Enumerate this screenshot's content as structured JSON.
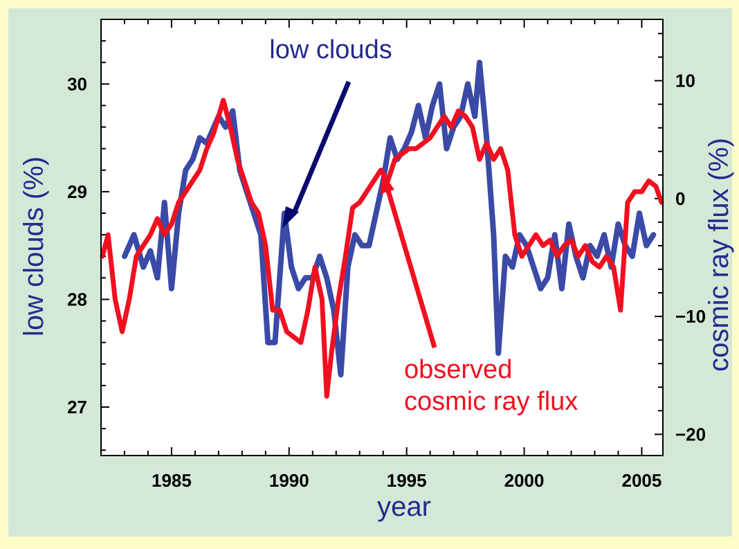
{
  "colors": {
    "panel_bg": "#d4e8d7",
    "outer_bg": "#fdfdc8",
    "clouds": "#3a4aa6",
    "cosmic": "#f01020",
    "label_blue": "#242a8c",
    "arrow_blue": "#0a0a6e",
    "arrow_red": "#f01020"
  },
  "chart_data": {
    "type": "line",
    "xlabel": "year",
    "ylabel_left": "low clouds (%)",
    "ylabel_right": "cosmic ray flux (%)",
    "xlim": [
      1982.0,
      2005.9
    ],
    "ylim_left": [
      26.55,
      30.6
    ],
    "ylim_right": [
      -21.8,
      15.2
    ],
    "x_ticks": [
      "1985",
      "1990",
      "1995",
      "2000",
      "2005"
    ],
    "y_ticks_left": [
      "27",
      "28",
      "29",
      "30"
    ],
    "y_ticks_right": [
      "−20",
      "−10",
      "0",
      "10"
    ],
    "annotations": {
      "clouds_label": "low clouds",
      "cosmic_label_line1": "observed",
      "cosmic_label_line2": "cosmic ray flux"
    },
    "series": [
      {
        "name": "low clouds",
        "axis": "left",
        "x": [
          1983.0,
          1983.4,
          1983.8,
          1984.1,
          1984.4,
          1984.7,
          1985.0,
          1985.3,
          1985.6,
          1985.9,
          1986.2,
          1986.5,
          1986.8,
          1987.0,
          1987.3,
          1987.6,
          1987.9,
          1988.2,
          1988.5,
          1988.8,
          1989.1,
          1989.4,
          1989.8,
          1990.1,
          1990.4,
          1990.7,
          1991.0,
          1991.3,
          1991.6,
          1991.9,
          1992.2,
          1992.5,
          1992.8,
          1993.1,
          1993.4,
          1993.7,
          1994.0,
          1994.3,
          1994.6,
          1994.9,
          1995.2,
          1995.5,
          1995.8,
          1996.1,
          1996.4,
          1996.7,
          1997.0,
          1997.3,
          1997.6,
          1997.9,
          1998.1,
          1998.4,
          1998.7,
          1998.9,
          1999.2,
          1999.5,
          1999.8,
          2000.1,
          2000.4,
          2000.7,
          2001.0,
          2001.3,
          2001.6,
          2001.9,
          2002.2,
          2002.5,
          2002.8,
          2003.1,
          2003.4,
          2003.7,
          2004.0,
          2004.3,
          2004.6,
          2004.9,
          2005.2,
          2005.5
        ],
        "values": [
          28.4,
          28.6,
          28.3,
          28.45,
          28.2,
          28.9,
          28.1,
          28.8,
          29.2,
          29.3,
          29.5,
          29.45,
          29.6,
          29.7,
          29.6,
          29.75,
          29.2,
          29.0,
          28.8,
          28.6,
          27.6,
          27.6,
          28.8,
          28.3,
          28.1,
          28.2,
          28.2,
          28.4,
          28.2,
          27.9,
          27.3,
          28.3,
          28.6,
          28.5,
          28.5,
          28.8,
          29.1,
          29.5,
          29.3,
          29.4,
          29.55,
          29.8,
          29.5,
          29.8,
          30.0,
          29.4,
          29.6,
          29.7,
          30.0,
          29.7,
          30.2,
          29.5,
          28.6,
          27.5,
          28.4,
          28.3,
          28.6,
          28.5,
          28.3,
          28.1,
          28.2,
          28.6,
          28.1,
          28.7,
          28.4,
          28.2,
          28.5,
          28.4,
          28.6,
          28.3,
          28.7,
          28.5,
          28.4,
          28.8,
          28.5,
          28.6
        ]
      },
      {
        "name": "observed cosmic ray flux",
        "axis": "left",
        "x": [
          1982.0,
          1982.3,
          1982.6,
          1982.9,
          1983.2,
          1983.5,
          1983.8,
          1984.1,
          1984.4,
          1984.7,
          1985.0,
          1985.3,
          1985.6,
          1985.9,
          1986.2,
          1986.5,
          1986.8,
          1987.0,
          1987.2,
          1987.5,
          1987.8,
          1988.1,
          1988.4,
          1988.7,
          1989.0,
          1989.3,
          1989.6,
          1989.9,
          1990.2,
          1990.5,
          1990.8,
          1991.1,
          1991.4,
          1991.6,
          1991.8,
          1992.1,
          1992.4,
          1992.7,
          1993.0,
          1993.3,
          1993.6,
          1993.9,
          1994.2,
          1994.5,
          1994.8,
          1995.1,
          1995.4,
          1995.7,
          1996.0,
          1996.3,
          1996.6,
          1996.9,
          1997.2,
          1997.5,
          1997.8,
          1998.1,
          1998.4,
          1998.7,
          1999.0,
          1999.3,
          1999.6,
          1999.9,
          2000.2,
          2000.5,
          2000.8,
          2001.1,
          2001.4,
          2001.7,
          2002.0,
          2002.3,
          2002.6,
          2002.9,
          2003.2,
          2003.5,
          2003.8,
          2004.1,
          2004.4,
          2004.7,
          2005.0,
          2005.3,
          2005.6,
          2005.9
        ],
        "values": [
          28.4,
          28.6,
          28.0,
          27.7,
          28.0,
          28.4,
          28.5,
          28.6,
          28.75,
          28.6,
          28.7,
          28.9,
          29.0,
          29.1,
          29.2,
          29.4,
          29.55,
          29.7,
          29.85,
          29.6,
          29.3,
          29.1,
          28.9,
          28.8,
          28.5,
          27.9,
          27.9,
          27.7,
          27.65,
          27.6,
          27.9,
          28.3,
          28.0,
          27.1,
          27.5,
          28.0,
          28.4,
          28.85,
          28.9,
          29.0,
          29.1,
          29.2,
          29.1,
          29.3,
          29.35,
          29.4,
          29.4,
          29.45,
          29.5,
          29.6,
          29.7,
          29.6,
          29.75,
          29.7,
          29.6,
          29.3,
          29.45,
          29.3,
          29.4,
          29.2,
          28.6,
          28.4,
          28.5,
          28.6,
          28.5,
          28.55,
          28.4,
          28.5,
          28.55,
          28.4,
          28.5,
          28.35,
          28.3,
          28.4,
          28.3,
          27.9,
          28.9,
          29.0,
          29.0,
          29.1,
          29.05,
          28.9
        ]
      }
    ]
  }
}
